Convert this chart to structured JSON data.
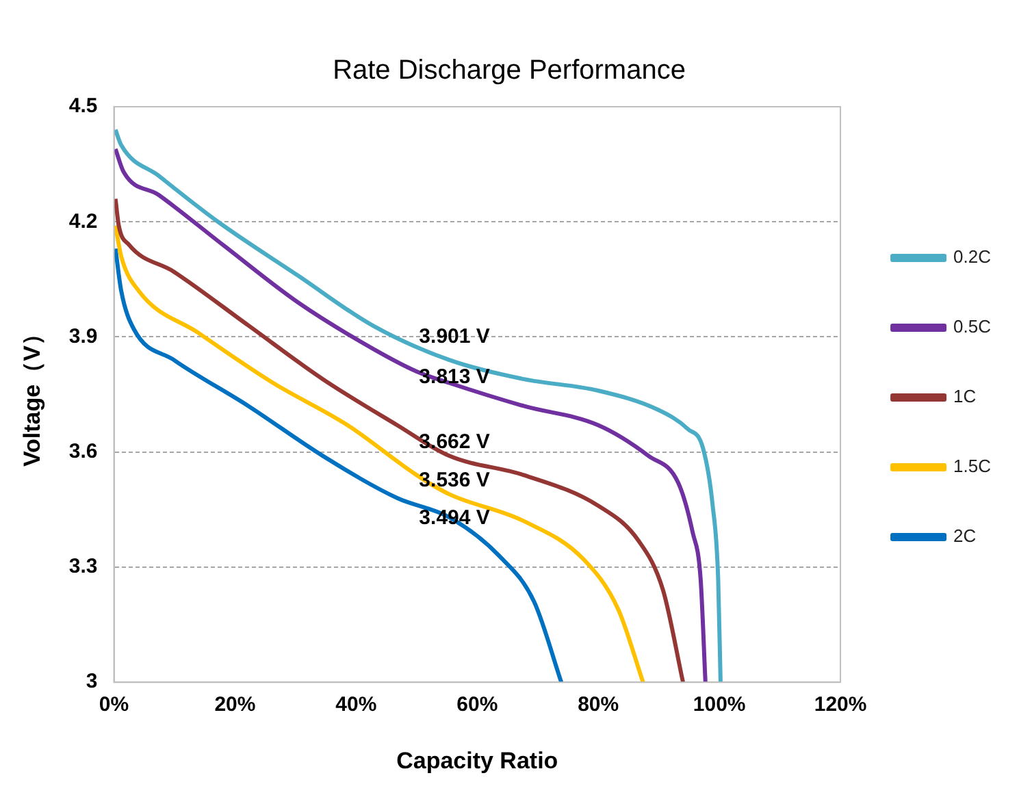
{
  "chart_data": {
    "type": "line",
    "title": "Rate Discharge Performance",
    "xlabel": "Capacity Ratio",
    "ylabel": "Voltage（V）",
    "xlim": [
      0,
      120
    ],
    "xticks": [
      {
        "value": 0,
        "label": "0%"
      },
      {
        "value": 20,
        "label": "20%"
      },
      {
        "value": 40,
        "label": "40%"
      },
      {
        "value": 60,
        "label": "60%"
      },
      {
        "value": 80,
        "label": "80%"
      },
      {
        "value": 100,
        "label": "100%"
      },
      {
        "value": 120,
        "label": "120%"
      }
    ],
    "ylim": [
      3,
      4.5
    ],
    "yticks": [
      3,
      3.3,
      3.6,
      3.9,
      4.2,
      4.5
    ],
    "grid": "y",
    "legend": "right",
    "marker": "none",
    "line_style": "solid",
    "series": [
      {
        "name": "0.2C",
        "color": "#4bacc6",
        "x": [
          0.25,
          1.2,
          7.4,
          17.2,
          30.4,
          42.7,
          55.4,
          67.7,
          80,
          89.9,
          94.8,
          97.3,
          98.9,
          99.8,
          100.2
        ],
        "values": [
          4.44,
          4.4,
          4.32,
          4.2,
          4.06,
          3.93,
          3.84,
          3.79,
          3.76,
          3.71,
          3.66,
          3.61,
          3.46,
          3.27,
          3.0
        ]
      },
      {
        "name": "0.5C",
        "color": "#7030a0",
        "x": [
          0.25,
          1.6,
          7.4,
          18,
          30.4,
          42.7,
          50,
          55.4,
          67.7,
          80,
          88.3,
          93.2,
          95.6,
          96.9,
          97.7
        ],
        "values": [
          4.39,
          4.33,
          4.27,
          4.14,
          3.99,
          3.87,
          3.81,
          3.78,
          3.72,
          3.67,
          3.59,
          3.52,
          3.39,
          3.27,
          3.0
        ]
      },
      {
        "name": "1C",
        "color": "#943634",
        "x": [
          0.25,
          0.8,
          2.5,
          9.9,
          22.2,
          34.5,
          46.8,
          55.4,
          67.7,
          80,
          86.6,
          90.7,
          94
        ],
        "values": [
          4.26,
          4.19,
          4.14,
          4.07,
          3.93,
          3.79,
          3.67,
          3.59,
          3.54,
          3.46,
          3.37,
          3.24,
          3.0
        ]
      },
      {
        "name": "1.5C",
        "color": "#ffc000",
        "x": [
          0.25,
          1.2,
          4.1,
          14,
          26.3,
          38.6,
          50,
          55.4,
          67.7,
          77.6,
          83.3,
          87.4
        ],
        "values": [
          4.19,
          4.11,
          4.02,
          3.91,
          3.78,
          3.67,
          3.54,
          3.49,
          3.42,
          3.32,
          3.19,
          3.0
        ]
      },
      {
        "name": "2C",
        "color": "#0070c0",
        "x": [
          0.25,
          1.2,
          3.3,
          9.9,
          22.2,
          34.5,
          46.8,
          55.4,
          63.6,
          69.4,
          73.9
        ],
        "values": [
          4.13,
          4.02,
          3.92,
          3.84,
          3.72,
          3.59,
          3.48,
          3.43,
          3.33,
          3.21,
          3.0
        ]
      }
    ],
    "annotations": [
      "3.901 V",
      "3.813 V",
      "3.662 V",
      "3.536 V",
      "3.494 V"
    ]
  }
}
